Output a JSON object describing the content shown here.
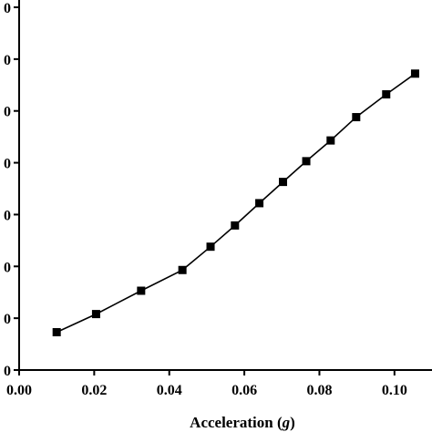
{
  "chart_data": {
    "type": "line",
    "title": "",
    "xlabel": "Acceleration (",
    "xlabel_var": "g",
    "xlabel_close": ")",
    "ylabel": "",
    "xlim": [
      0.0,
      0.11
    ],
    "ylim": [
      0,
      7
    ],
    "x_ticks": [
      0.0,
      0.02,
      0.04,
      0.06,
      0.08,
      0.1
    ],
    "x_tick_labels": [
      "0.00",
      "0.02",
      "0.04",
      "0.06",
      "0.08",
      "0.10"
    ],
    "y_ticks": [
      0,
      1,
      2,
      3,
      4,
      5,
      6,
      7
    ],
    "y_tick_labels": [
      "0",
      "0",
      "0",
      "0",
      "0",
      "0",
      "0",
      "0"
    ],
    "grid": false,
    "series": [
      {
        "marker": "square",
        "color": "#000000",
        "x": [
          0.01,
          0.0205,
          0.0325,
          0.0435,
          0.051,
          0.0575,
          0.064,
          0.0703,
          0.0765,
          0.083,
          0.0898,
          0.0978,
          0.1055
        ],
        "y": [
          0.73,
          1.08,
          1.53,
          1.93,
          2.38,
          2.79,
          3.22,
          3.63,
          4.03,
          4.43,
          4.88,
          5.32,
          5.72
        ]
      }
    ]
  }
}
